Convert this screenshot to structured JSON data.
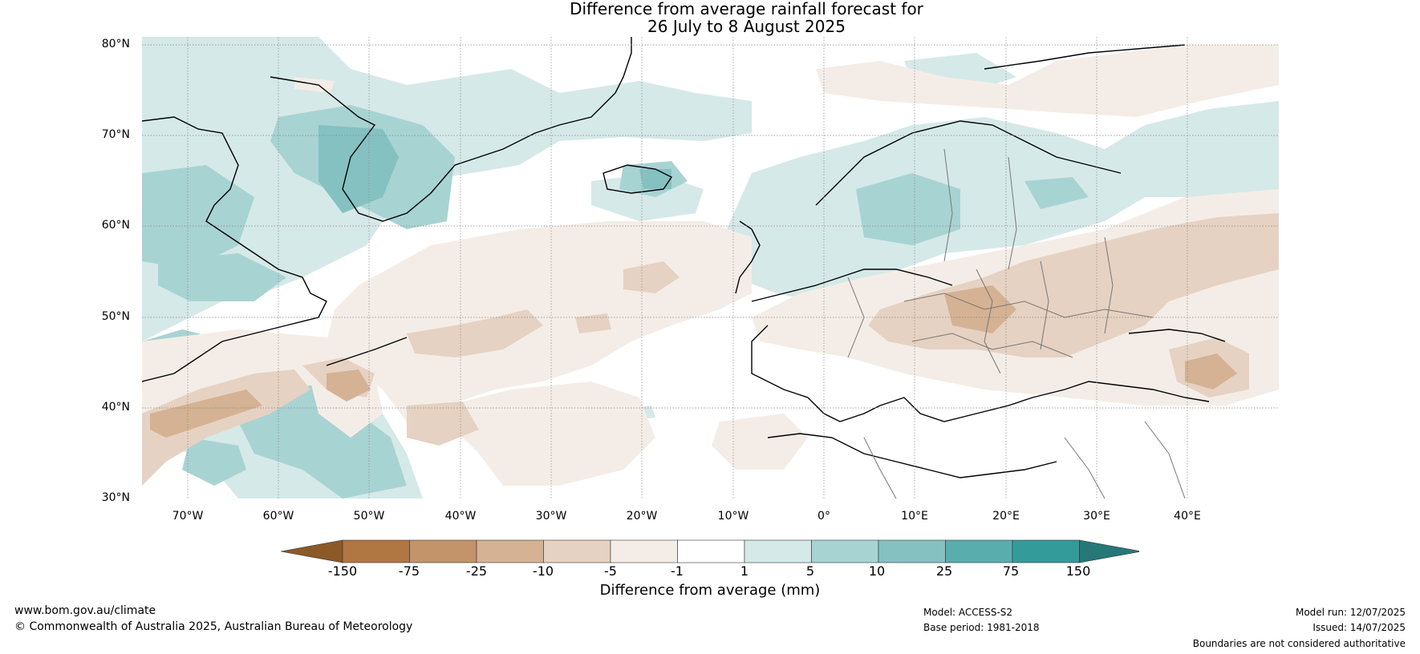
{
  "title": {
    "line1": "Difference from average rainfall forecast for",
    "line2": "26 July to 8 August 2025"
  },
  "map": {
    "latitude_labels": [
      "80°N",
      "70°N",
      "60°N",
      "50°N",
      "40°N",
      "30°N"
    ],
    "longitude_labels": [
      "70°W",
      "60°W",
      "50°W",
      "40°W",
      "30°W",
      "20°W",
      "10°W",
      "0°",
      "10°E",
      "20°E",
      "30°E",
      "40°E"
    ],
    "extent": {
      "lon_min": -75,
      "lon_max": 50,
      "lat_min": 30,
      "lat_max": 81
    },
    "graticule": "dotted grid lines every 10 degrees"
  },
  "legend": {
    "label": "Difference from average (mm)",
    "ticks": [
      "-150",
      "-75",
      "-25",
      "-10",
      "-5",
      "-1",
      "1",
      "5",
      "10",
      "25",
      "75",
      "150"
    ],
    "colors": [
      "#8c5a26",
      "#b07743",
      "#c39369",
      "#d4b293",
      "#e6d2c2",
      "#f4ede7",
      "#ffffff",
      "#d5e9e8",
      "#a8d3d3",
      "#85c1c1",
      "#5aadad",
      "#339c9a",
      "#267878"
    ]
  },
  "footer": {
    "website": "www.bom.gov.au/climate",
    "copyright": "© Commonwealth of Australia 2025, Australian Bureau of Meteorology",
    "model": "Model: ACCESS-S2",
    "base_period": "Base period: 1981-2018",
    "model_run": "Model run: 12/07/2025",
    "issued": "Issued: 14/07/2025",
    "disclaimer": "Boundaries are not considered authoritative"
  }
}
